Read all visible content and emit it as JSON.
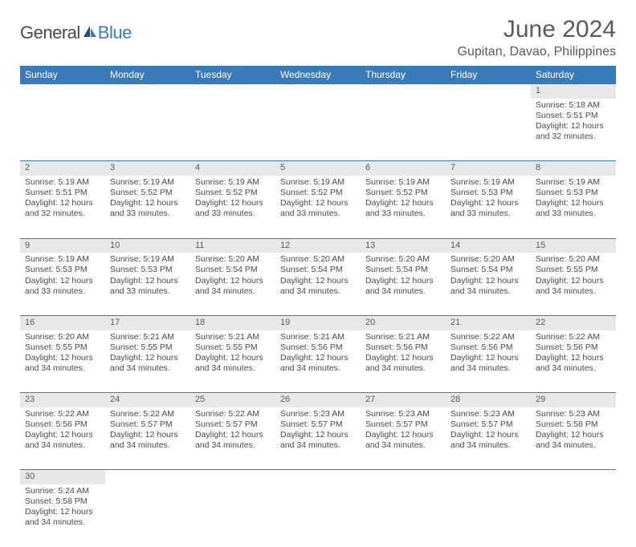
{
  "logo": {
    "part1": "General",
    "part2": "Blue"
  },
  "title": "June 2024",
  "location": "Gupitan, Davao, Philippines",
  "colors": {
    "header_bg": "#3a7ab8",
    "header_text": "#ffffff",
    "daynum_bg": "#e8e8e8",
    "border": "#3a7ab8",
    "text": "#4a4a4a",
    "logo_blue": "#3a7ab8"
  },
  "day_headers": [
    "Sunday",
    "Monday",
    "Tuesday",
    "Wednesday",
    "Thursday",
    "Friday",
    "Saturday"
  ],
  "weeks": [
    [
      null,
      null,
      null,
      null,
      null,
      null,
      {
        "n": "1",
        "sr": "Sunrise: 5:18 AM",
        "ss": "Sunset: 5:51 PM",
        "d1": "Daylight: 12 hours",
        "d2": "and 32 minutes."
      }
    ],
    [
      {
        "n": "2",
        "sr": "Sunrise: 5:19 AM",
        "ss": "Sunset: 5:51 PM",
        "d1": "Daylight: 12 hours",
        "d2": "and 32 minutes."
      },
      {
        "n": "3",
        "sr": "Sunrise: 5:19 AM",
        "ss": "Sunset: 5:52 PM",
        "d1": "Daylight: 12 hours",
        "d2": "and 33 minutes."
      },
      {
        "n": "4",
        "sr": "Sunrise: 5:19 AM",
        "ss": "Sunset: 5:52 PM",
        "d1": "Daylight: 12 hours",
        "d2": "and 33 minutes."
      },
      {
        "n": "5",
        "sr": "Sunrise: 5:19 AM",
        "ss": "Sunset: 5:52 PM",
        "d1": "Daylight: 12 hours",
        "d2": "and 33 minutes."
      },
      {
        "n": "6",
        "sr": "Sunrise: 5:19 AM",
        "ss": "Sunset: 5:52 PM",
        "d1": "Daylight: 12 hours",
        "d2": "and 33 minutes."
      },
      {
        "n": "7",
        "sr": "Sunrise: 5:19 AM",
        "ss": "Sunset: 5:53 PM",
        "d1": "Daylight: 12 hours",
        "d2": "and 33 minutes."
      },
      {
        "n": "8",
        "sr": "Sunrise: 5:19 AM",
        "ss": "Sunset: 5:53 PM",
        "d1": "Daylight: 12 hours",
        "d2": "and 33 minutes."
      }
    ],
    [
      {
        "n": "9",
        "sr": "Sunrise: 5:19 AM",
        "ss": "Sunset: 5:53 PM",
        "d1": "Daylight: 12 hours",
        "d2": "and 33 minutes."
      },
      {
        "n": "10",
        "sr": "Sunrise: 5:19 AM",
        "ss": "Sunset: 5:53 PM",
        "d1": "Daylight: 12 hours",
        "d2": "and 33 minutes."
      },
      {
        "n": "11",
        "sr": "Sunrise: 5:20 AM",
        "ss": "Sunset: 5:54 PM",
        "d1": "Daylight: 12 hours",
        "d2": "and 34 minutes."
      },
      {
        "n": "12",
        "sr": "Sunrise: 5:20 AM",
        "ss": "Sunset: 5:54 PM",
        "d1": "Daylight: 12 hours",
        "d2": "and 34 minutes."
      },
      {
        "n": "13",
        "sr": "Sunrise: 5:20 AM",
        "ss": "Sunset: 5:54 PM",
        "d1": "Daylight: 12 hours",
        "d2": "and 34 minutes."
      },
      {
        "n": "14",
        "sr": "Sunrise: 5:20 AM",
        "ss": "Sunset: 5:54 PM",
        "d1": "Daylight: 12 hours",
        "d2": "and 34 minutes."
      },
      {
        "n": "15",
        "sr": "Sunrise: 5:20 AM",
        "ss": "Sunset: 5:55 PM",
        "d1": "Daylight: 12 hours",
        "d2": "and 34 minutes."
      }
    ],
    [
      {
        "n": "16",
        "sr": "Sunrise: 5:20 AM",
        "ss": "Sunset: 5:55 PM",
        "d1": "Daylight: 12 hours",
        "d2": "and 34 minutes."
      },
      {
        "n": "17",
        "sr": "Sunrise: 5:21 AM",
        "ss": "Sunset: 5:55 PM",
        "d1": "Daylight: 12 hours",
        "d2": "and 34 minutes."
      },
      {
        "n": "18",
        "sr": "Sunrise: 5:21 AM",
        "ss": "Sunset: 5:55 PM",
        "d1": "Daylight: 12 hours",
        "d2": "and 34 minutes."
      },
      {
        "n": "19",
        "sr": "Sunrise: 5:21 AM",
        "ss": "Sunset: 5:56 PM",
        "d1": "Daylight: 12 hours",
        "d2": "and 34 minutes."
      },
      {
        "n": "20",
        "sr": "Sunrise: 5:21 AM",
        "ss": "Sunset: 5:56 PM",
        "d1": "Daylight: 12 hours",
        "d2": "and 34 minutes."
      },
      {
        "n": "21",
        "sr": "Sunrise: 5:22 AM",
        "ss": "Sunset: 5:56 PM",
        "d1": "Daylight: 12 hours",
        "d2": "and 34 minutes."
      },
      {
        "n": "22",
        "sr": "Sunrise: 5:22 AM",
        "ss": "Sunset: 5:56 PM",
        "d1": "Daylight: 12 hours",
        "d2": "and 34 minutes."
      }
    ],
    [
      {
        "n": "23",
        "sr": "Sunrise: 5:22 AM",
        "ss": "Sunset: 5:56 PM",
        "d1": "Daylight: 12 hours",
        "d2": "and 34 minutes."
      },
      {
        "n": "24",
        "sr": "Sunrise: 5:22 AM",
        "ss": "Sunset: 5:57 PM",
        "d1": "Daylight: 12 hours",
        "d2": "and 34 minutes."
      },
      {
        "n": "25",
        "sr": "Sunrise: 5:22 AM",
        "ss": "Sunset: 5:57 PM",
        "d1": "Daylight: 12 hours",
        "d2": "and 34 minutes."
      },
      {
        "n": "26",
        "sr": "Sunrise: 5:23 AM",
        "ss": "Sunset: 5:57 PM",
        "d1": "Daylight: 12 hours",
        "d2": "and 34 minutes."
      },
      {
        "n": "27",
        "sr": "Sunrise: 5:23 AM",
        "ss": "Sunset: 5:57 PM",
        "d1": "Daylight: 12 hours",
        "d2": "and 34 minutes."
      },
      {
        "n": "28",
        "sr": "Sunrise: 5:23 AM",
        "ss": "Sunset: 5:57 PM",
        "d1": "Daylight: 12 hours",
        "d2": "and 34 minutes."
      },
      {
        "n": "29",
        "sr": "Sunrise: 5:23 AM",
        "ss": "Sunset: 5:58 PM",
        "d1": "Daylight: 12 hours",
        "d2": "and 34 minutes."
      }
    ],
    [
      {
        "n": "30",
        "sr": "Sunrise: 5:24 AM",
        "ss": "Sunset: 5:58 PM",
        "d1": "Daylight: 12 hours",
        "d2": "and 34 minutes."
      },
      null,
      null,
      null,
      null,
      null,
      null
    ]
  ]
}
